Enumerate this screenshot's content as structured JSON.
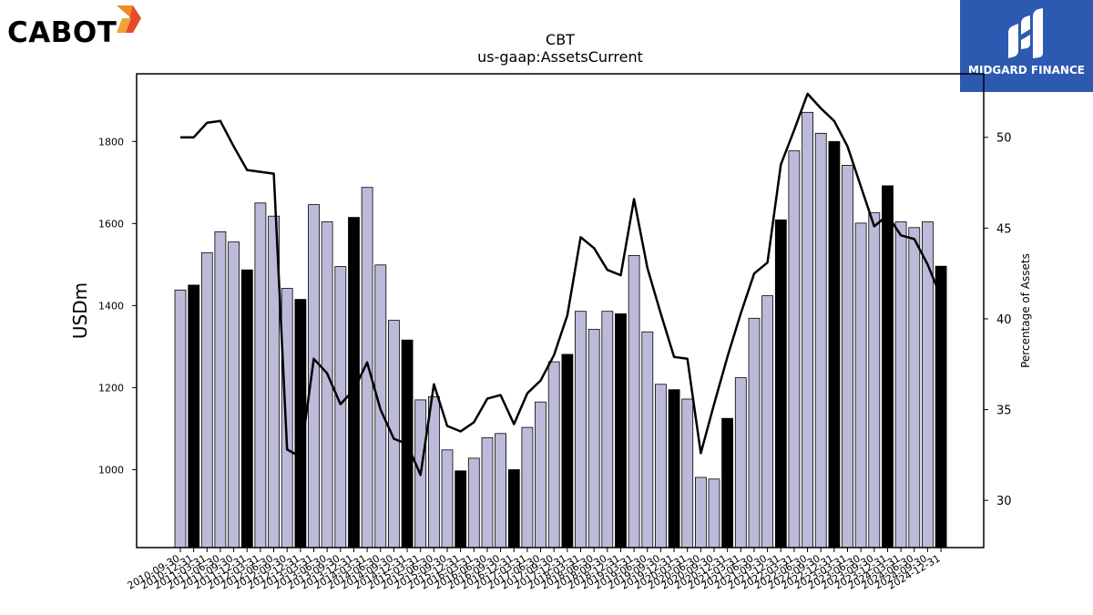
{
  "logos": {
    "left": "CABOT",
    "right": "MIDGARD FINANCE"
  },
  "colors": {
    "bar_default": "#bcbad9",
    "bar_highlight": "#000000",
    "line": "#000000",
    "midgard_bg": "#2d5ab0"
  },
  "chart_data": {
    "type": "bar",
    "title": "CBT",
    "subtitle": "us-gaap:AssetsCurrent",
    "ylabel": "USDm",
    "y2label": "Percentage of Assets",
    "ylim": [
      810,
      1965
    ],
    "y2lim": [
      27.4,
      53.5
    ],
    "yticks": [
      1000,
      1200,
      1400,
      1600,
      1800
    ],
    "y2ticks": [
      30,
      35,
      40,
      45,
      50
    ],
    "grid": false,
    "categories": [
      "2010-09-30",
      "2010-12-31",
      "2011-03-31",
      "2011-06-30",
      "2011-09-30",
      "2011-12-31",
      "2012-03-31",
      "2012-06-30",
      "2012-09-30",
      "2012-12-31",
      "2013-03-31",
      "2013-06-30",
      "2013-09-30",
      "2013-12-31",
      "2014-03-31",
      "2014-06-30",
      "2014-09-30",
      "2014-12-31",
      "2015-03-31",
      "2015-06-30",
      "2015-09-30",
      "2015-12-31",
      "2016-03-31",
      "2016-06-30",
      "2016-09-30",
      "2016-12-31",
      "2017-03-31",
      "2017-06-30",
      "2017-09-30",
      "2017-12-31",
      "2018-03-31",
      "2018-06-30",
      "2018-09-30",
      "2018-12-31",
      "2019-03-31",
      "2019-06-30",
      "2019-09-30",
      "2019-12-31",
      "2020-03-31",
      "2020-06-30",
      "2020-09-30",
      "2020-12-31",
      "2021-03-31",
      "2021-06-30",
      "2021-09-30",
      "2021-12-31",
      "2022-03-31",
      "2022-06-30",
      "2022-09-30",
      "2022-12-31",
      "2023-03-31",
      "2023-06-30",
      "2023-09-30",
      "2023-12-31",
      "2024-03-31",
      "2024-06-30",
      "2024-09-30",
      "2024-12-31"
    ],
    "tick_labels": [
      "2010-09-30",
      "2010-12-31",
      "2011-03-31",
      "2011-06-30",
      "2011-09-30",
      "2011-12-31",
      "2012-03-31",
      "2012-06-30",
      "2012-09-30",
      "2012-12-31",
      "2013-03-31",
      "2013-06-30",
      "2013-09-30",
      "2013-12-31",
      "2014-03-31",
      "2014-06-30",
      "2014-09-30",
      "2014-12-31",
      "2015-03-31",
      "2015-06-30",
      "2015-09-30",
      "2015-12-31",
      "2016-03-31",
      "2016-06-30",
      "2016-09-30",
      "2016-12-31",
      "2017-03-31",
      "2017-06-30",
      "2017-09-30",
      "2017-12-31",
      "2018-03-31",
      "2018-06-30",
      "2018-09-30",
      "2018-12-31",
      "2019-03-31",
      "2019-06-30",
      "2019-09-30",
      "2019-12-31",
      "2020-03-31",
      "2020-06-30",
      "2020-09-30",
      "2020-12-31",
      "2021-03-31",
      "2021-06-30",
      "2021-09-30",
      "2021-12-31",
      "2022-03-31",
      "2022-06-30",
      "2022-09-30",
      "2022-12-31",
      "2023-03-31",
      "2023-06-30",
      "2023-09-30",
      "2023-12-31",
      "2024-03-31",
      "2024-06-30",
      "2024-09-30",
      "2024-12-31"
    ],
    "values": [
      1438,
      1450,
      1529,
      1580,
      1555,
      1487,
      1650,
      1618,
      1442,
      1415,
      1646,
      1604,
      1495,
      1615,
      1688,
      1499,
      1364,
      1316,
      1170,
      1178,
      1048,
      997,
      1028,
      1078,
      1088,
      1000,
      1103,
      1165,
      1263,
      1281,
      1386,
      1342,
      1386,
      1380,
      1522,
      1336,
      1208,
      1195,
      1172,
      981,
      977,
      1125,
      1224,
      1369,
      1424,
      1609,
      1777,
      1871,
      1820,
      1800,
      1742,
      1601,
      1626,
      1692,
      1604,
      1590,
      1604,
      1496
    ],
    "highlight": [
      false,
      true,
      false,
      false,
      false,
      true,
      false,
      false,
      false,
      true,
      false,
      false,
      false,
      true,
      false,
      false,
      false,
      true,
      false,
      false,
      false,
      true,
      false,
      false,
      false,
      true,
      false,
      false,
      false,
      true,
      false,
      false,
      false,
      true,
      false,
      false,
      false,
      true,
      false,
      false,
      false,
      true,
      false,
      false,
      false,
      true,
      false,
      false,
      false,
      true,
      false,
      false,
      false,
      true,
      false,
      false,
      false,
      true
    ],
    "secondary_series": {
      "name": "",
      "type": "line",
      "values": [
        50.0,
        50.0,
        50.8,
        50.9,
        49.5,
        48.2,
        48.1,
        48.0,
        32.8,
        32.4,
        37.8,
        37.0,
        35.3,
        36.1,
        37.6,
        35.0,
        33.4,
        33.1,
        31.4,
        36.4,
        34.1,
        33.8,
        34.3,
        35.6,
        35.8,
        34.2,
        35.9,
        36.6,
        38.0,
        40.2,
        44.5,
        43.9,
        42.7,
        42.4,
        46.6,
        42.8,
        40.3,
        37.9,
        37.8,
        32.6,
        35.3,
        37.9,
        40.3,
        42.5,
        43.1,
        48.5,
        50.4,
        52.4,
        51.6,
        50.9,
        49.5,
        47.3,
        45.1,
        45.7,
        44.6,
        44.4,
        43.0,
        41.2
      ]
    }
  }
}
